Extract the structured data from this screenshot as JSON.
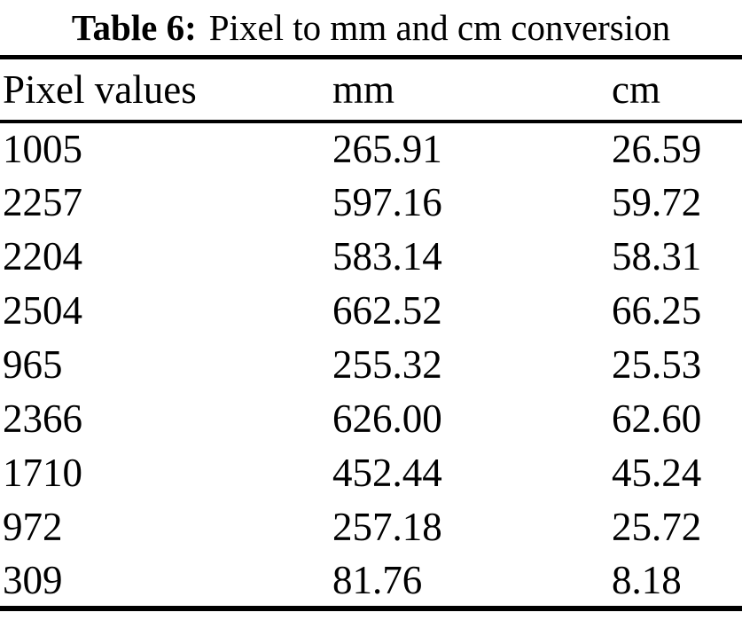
{
  "caption": {
    "label": "Table 6:",
    "text": "Pixel to mm and cm conversion"
  },
  "table": {
    "columns": [
      "Pixel values",
      "mm",
      "cm"
    ],
    "rows": [
      {
        "pixel": "1005",
        "mm": "265.91",
        "cm": "26.59"
      },
      {
        "pixel": "2257",
        "mm": "597.16",
        "cm": "59.72"
      },
      {
        "pixel": "2204",
        "mm": "583.14",
        "cm": "58.31"
      },
      {
        "pixel": "2504",
        "mm": "662.52",
        "cm": "66.25"
      },
      {
        "pixel": "965",
        "mm": "255.32",
        "cm": "25.53"
      },
      {
        "pixel": "2366",
        "mm": "626.00",
        "cm": "62.60"
      },
      {
        "pixel": "1710",
        "mm": "452.44",
        "cm": "45.24"
      },
      {
        "pixel": "972",
        "mm": "257.18",
        "cm": "25.72"
      },
      {
        "pixel": "309",
        "mm": "81.76",
        "cm": "8.18"
      }
    ]
  }
}
